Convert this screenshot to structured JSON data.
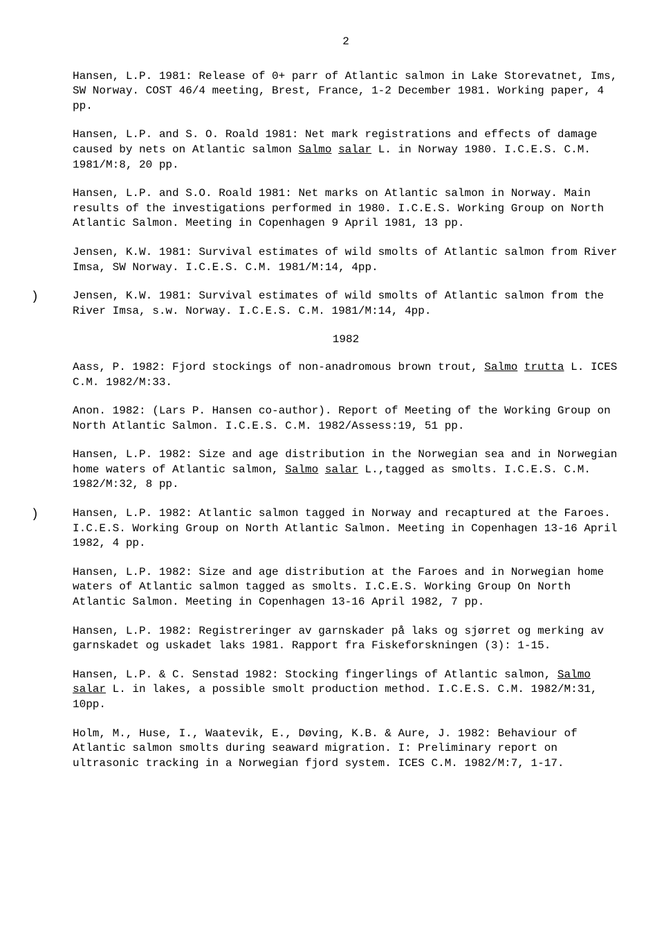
{
  "page_number": "2",
  "entries": [
    {
      "paren": false,
      "segments": [
        {
          "text": "Hansen, L.P. 1981: Release of 0+ parr of Atlantic salmon in Lake Storevatnet, Ims, SW Norway. COST 46/4 meeting, Brest, France, 1-2 December 1981. Working paper, 4 pp."
        }
      ]
    },
    {
      "paren": false,
      "segments": [
        {
          "text": "Hansen, L.P. and S. O. Roald 1981: Net mark registrations and effects of damage caused by nets on Atlantic salmon "
        },
        {
          "text": "Salmo",
          "u": true
        },
        {
          "text": " "
        },
        {
          "text": "salar",
          "u": true
        },
        {
          "text": " L. in Norway 1980. I.C.E.S. C.M. 1981/M:8, 20 pp."
        }
      ]
    },
    {
      "paren": false,
      "segments": [
        {
          "text": "Hansen, L.P. and S.O. Roald 1981: Net marks on Atlantic salmon in Norway. Main results of the investigations performed in 1980. I.C.E.S. Working Group on North Atlantic Salmon. Meeting in Copenhagen 9 April 1981, 13 pp."
        }
      ]
    },
    {
      "paren": false,
      "segments": [
        {
          "text": "Jensen, K.W. 1981: Survival estimates of wild smolts of Atlantic salmon from River Imsa, SW Norway. I.C.E.S. C.M. 1981/M:14, 4pp."
        }
      ]
    },
    {
      "paren": true,
      "segments": [
        {
          "text": "Jensen, K.W. 1981: Survival estimates of wild smolts of Atlantic salmon from the River Imsa, s.w. Norway. I.C.E.S. C.M. 1981/M:14, 4pp."
        }
      ]
    }
  ],
  "year_heading": "1982",
  "entries2": [
    {
      "paren": false,
      "segments": [
        {
          "text": "Aass, P. 1982: Fjord stockings of non-anadromous brown trout, "
        },
        {
          "text": "Salmo",
          "u": true
        },
        {
          "text": " "
        },
        {
          "text": "trutta",
          "u": true
        },
        {
          "text": " L. ICES C.M. 1982/M:33."
        }
      ]
    },
    {
      "paren": false,
      "segments": [
        {
          "text": "Anon. 1982: (Lars P. Hansen co-author). Report of Meeting of the Working Group on North Atlantic Salmon. I.C.E.S. C.M. 1982/Assess:19, 51 pp."
        }
      ]
    },
    {
      "paren": false,
      "segments": [
        {
          "text": "Hansen, L.P. 1982: Size and age distribution in the Norwegian sea and in Norwegian home waters of Atlantic salmon, "
        },
        {
          "text": "Salmo",
          "u": true
        },
        {
          "text": " "
        },
        {
          "text": "salar",
          "u": true
        },
        {
          "text": " L.,tagged as smolts. I.C.E.S. C.M. 1982/M:32, 8 pp."
        }
      ]
    },
    {
      "paren": true,
      "segments": [
        {
          "text": "Hansen, L.P. 1982: Atlantic salmon tagged in Norway and recaptured at  the Faroes. I.C.E.S. Working Group on North Atlantic Salmon. Meeting in Copenhagen 13-16 April 1982, 4 pp."
        }
      ]
    },
    {
      "paren": false,
      "segments": [
        {
          "text": "Hansen, L.P. 1982: Size and age distribution at the Faroes and in Norwegian home waters of Atlantic salmon tagged as smolts. I.C.E.S. Working Group On North Atlantic Salmon. Meeting in Copenhagen 13-16 April 1982, 7 pp."
        }
      ]
    },
    {
      "paren": false,
      "segments": [
        {
          "text": "Hansen, L.P. 1982: Registreringer av garnskader på laks og sjørret og merking av garnskadet og uskadet laks 1981. Rapport fra Fiskeforskningen (3): 1-15."
        }
      ]
    },
    {
      "paren": false,
      "segments": [
        {
          "text": "Hansen, L.P. & C. Senstad 1982: Stocking fingerlings of Atlantic salmon, "
        },
        {
          "text": "Salmo",
          "u": true
        },
        {
          "text": " "
        },
        {
          "text": "salar",
          "u": true
        },
        {
          "text": " L. in lakes, a possible smolt production method. I.C.E.S. C.M. 1982/M:31, 10pp."
        }
      ]
    },
    {
      "paren": false,
      "segments": [
        {
          "text": "Holm, M., Huse, I., Waatevik, E., Døving, K.B. & Aure, J. 1982: Behaviour of Atlantic salmon smolts during seaward migration. I: Preliminary report on ultrasonic tracking in a Norwegian fjord system. ICES C.M. 1982/M:7, 1-17."
        }
      ]
    }
  ]
}
